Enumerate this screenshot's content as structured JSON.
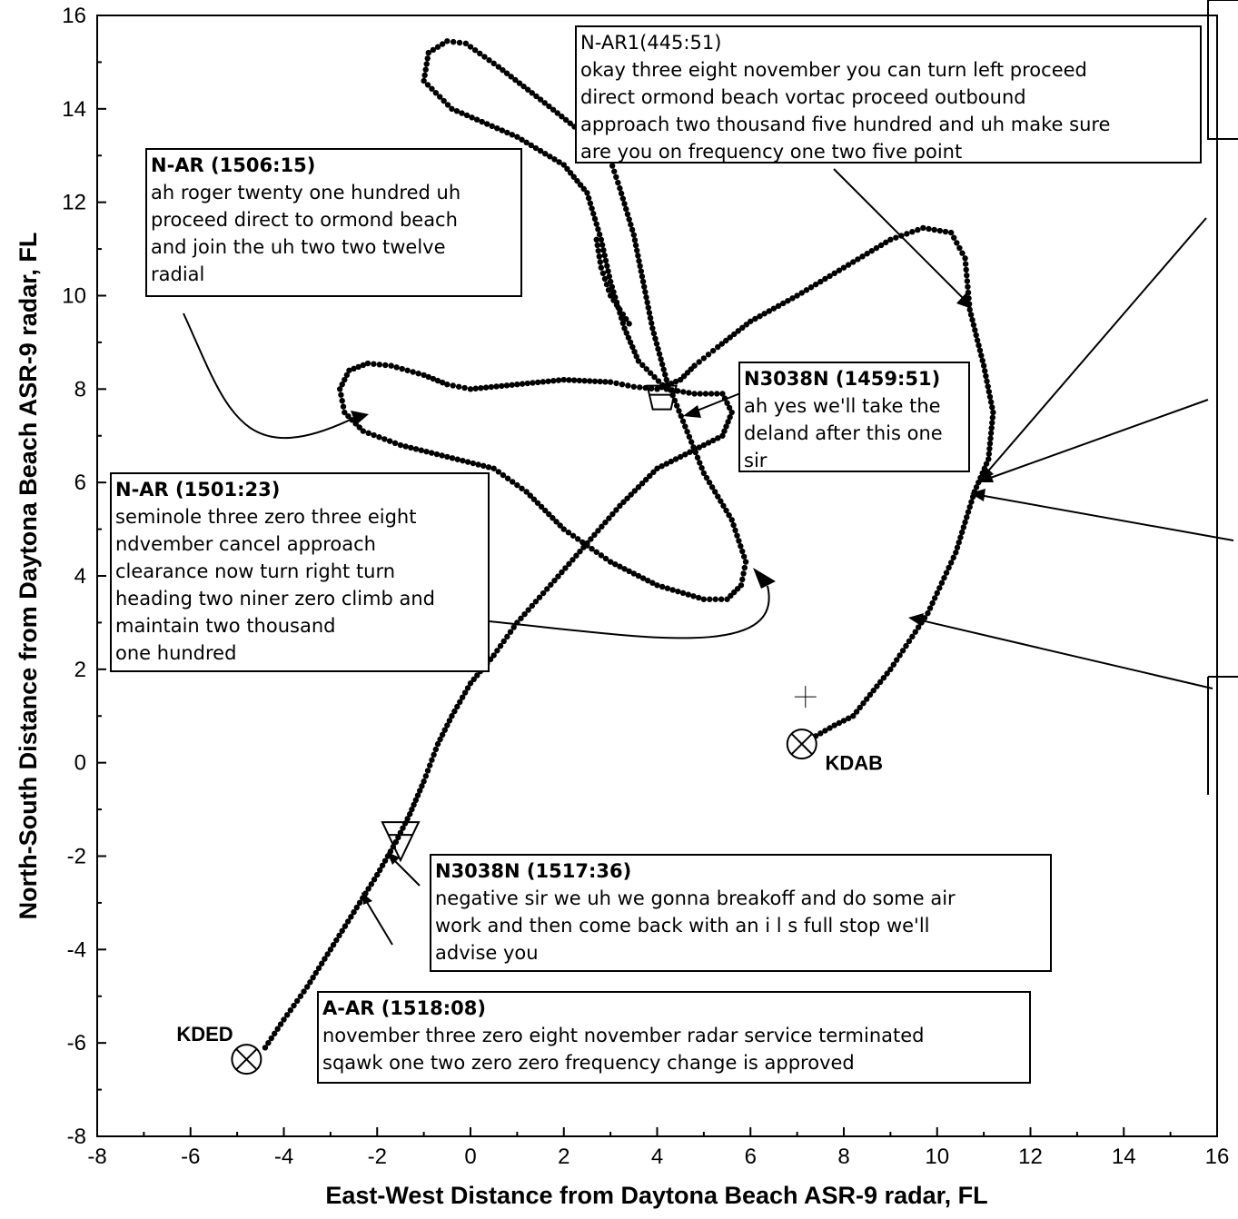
{
  "chart_data": {
    "type": "scatter",
    "title": "",
    "xlabel": "East-West Distance from Daytona Beach ASR-9 radar, FL",
    "ylabel": "North-South Distance from Daytona Beach ASR-9 radar, FL",
    "xlim": [
      -8,
      16
    ],
    "ylim": [
      -8,
      16
    ],
    "xticks": [
      -8,
      -6,
      -4,
      -2,
      0,
      2,
      4,
      6,
      8,
      10,
      12,
      14,
      16
    ],
    "yticks": [
      -8,
      -6,
      -4,
      -2,
      0,
      2,
      4,
      6,
      8,
      10,
      12,
      14,
      16
    ],
    "grid": false,
    "track_path": [
      [
        7.1,
        0.4
      ],
      [
        7.8,
        0.8
      ],
      [
        8.2,
        1.0
      ],
      [
        9.0,
        2.0
      ],
      [
        9.8,
        3.2
      ],
      [
        10.4,
        4.5
      ],
      [
        10.8,
        5.8
      ],
      [
        11.1,
        6.5
      ],
      [
        11.2,
        7.5
      ],
      [
        11.0,
        8.5
      ],
      [
        10.7,
        9.7
      ],
      [
        10.6,
        10.8
      ],
      [
        10.3,
        11.35
      ],
      [
        9.7,
        11.45
      ],
      [
        9.0,
        11.2
      ],
      [
        8.0,
        10.6
      ],
      [
        7.0,
        10.0
      ],
      [
        6.0,
        9.45
      ],
      [
        5.3,
        8.9
      ],
      [
        4.8,
        8.5
      ],
      [
        4.5,
        8.2
      ],
      [
        4.0,
        8.0
      ],
      [
        3.5,
        8.05
      ],
      [
        3.0,
        8.15
      ],
      [
        2.0,
        8.2
      ],
      [
        1.0,
        8.1
      ],
      [
        0.0,
        8.0
      ],
      [
        -0.5,
        8.1
      ],
      [
        -1.0,
        8.3
      ],
      [
        -1.7,
        8.5
      ],
      [
        -2.2,
        8.55
      ],
      [
        -2.6,
        8.4
      ],
      [
        -2.8,
        8.0
      ],
      [
        -2.7,
        7.5
      ],
      [
        -2.3,
        7.1
      ],
      [
        -1.5,
        6.8
      ],
      [
        -0.5,
        6.55
      ],
      [
        0.5,
        6.3
      ],
      [
        1.2,
        5.8
      ],
      [
        2.0,
        5.0
      ],
      [
        3.0,
        4.3
      ],
      [
        4.0,
        3.8
      ],
      [
        5.0,
        3.5
      ],
      [
        5.5,
        3.5
      ],
      [
        5.8,
        3.8
      ],
      [
        5.9,
        4.3
      ],
      [
        5.6,
        5.2
      ],
      [
        5.0,
        6.2
      ],
      [
        4.6,
        7.2
      ],
      [
        4.2,
        8.2
      ],
      [
        3.9,
        9.3
      ],
      [
        3.7,
        10.3
      ],
      [
        3.5,
        11.3
      ],
      [
        3.2,
        12.3
      ],
      [
        3.0,
        12.9
      ],
      [
        2.5,
        13.4
      ],
      [
        1.5,
        14.2
      ],
      [
        0.6,
        14.9
      ],
      [
        -0.1,
        15.4
      ],
      [
        -0.5,
        15.45
      ],
      [
        -0.9,
        15.2
      ],
      [
        -1.0,
        14.6
      ],
      [
        -0.4,
        14.0
      ],
      [
        1.0,
        13.4
      ],
      [
        2.0,
        12.8
      ],
      [
        2.5,
        12.2
      ],
      [
        2.8,
        11.2
      ],
      [
        3.0,
        10.3
      ],
      [
        3.3,
        9.3
      ],
      [
        3.6,
        8.6
      ],
      [
        4.2,
        8.0
      ],
      [
        4.8,
        7.9
      ],
      [
        5.4,
        7.9
      ],
      [
        5.6,
        7.5
      ],
      [
        5.4,
        7.0
      ],
      [
        4.8,
        6.7
      ],
      [
        4.0,
        6.3
      ],
      [
        3.2,
        5.5
      ],
      [
        2.5,
        4.7
      ],
      [
        1.8,
        3.9
      ],
      [
        1.0,
        3.0
      ],
      [
        0.5,
        2.3
      ],
      [
        0.0,
        1.7
      ],
      [
        -0.4,
        1.0
      ],
      [
        -0.7,
        0.4
      ],
      [
        -1.0,
        -0.4
      ],
      [
        -1.3,
        -1.1
      ],
      [
        -1.6,
        -1.7
      ],
      [
        -2.0,
        -2.4
      ],
      [
        -2.5,
        -3.2
      ],
      [
        -3.0,
        -4.0
      ],
      [
        -3.5,
        -4.8
      ],
      [
        -4.0,
        -5.5
      ],
      [
        -4.4,
        -6.1
      ]
    ],
    "extra_track": [
      [
        3.4,
        9.4
      ],
      [
        3.0,
        10.0
      ],
      [
        2.8,
        10.6
      ],
      [
        2.7,
        11.2
      ]
    ],
    "airports": [
      {
        "name": "KDAB",
        "x": 7.1,
        "y": 0.4,
        "label_x": 7.6,
        "label_y": 0.0
      },
      {
        "name": "KDED",
        "x": -4.8,
        "y": -6.35,
        "label_x": -6.3,
        "label_y": -5.8
      }
    ],
    "markers": [
      {
        "shape": "pentagon",
        "x": 4.1,
        "y": 7.8
      },
      {
        "shape": "triangle-down",
        "x": -1.5,
        "y": -1.7
      }
    ],
    "annotations": [
      {
        "header": "N-AR (1506:15)",
        "lines": [
          "ah roger twenty one hundred uh",
          "proceed direct to ormond beach",
          "and join the uh two two twelve",
          "radial"
        ]
      },
      {
        "header": "N-AR1(445:51)",
        "lines": [
          "okay three eight november you can turn left proceed",
          "direct ormond beach vortac proceed outbound",
          "approach two thousand five hundred and uh make sure",
          "are you on frequency one two five point"
        ]
      },
      {
        "header": "N3038N (1459:51)",
        "lines": [
          "ah yes we'll take the",
          "deland after this one",
          "sir"
        ]
      },
      {
        "header": "N-AR (1501:23)",
        "lines": [
          "seminole three zero three eight",
          "ndvember cancel approach",
          "clearance now turn right turn",
          "heading two niner zero climb and",
          "maintain two thousand",
          "one hundred"
        ]
      },
      {
        "header": "N3038N (1517:36)",
        "lines": [
          "negative sir we uh we gonna breakoff and do some air",
          "work and then come back with an i l s full stop we'll",
          "advise you"
        ]
      },
      {
        "header": "A-AR (1518:08)",
        "lines": [
          "november three zero eight november radar service terminated",
          "sqawk one two zero zero frequency change is approved"
        ]
      }
    ]
  }
}
